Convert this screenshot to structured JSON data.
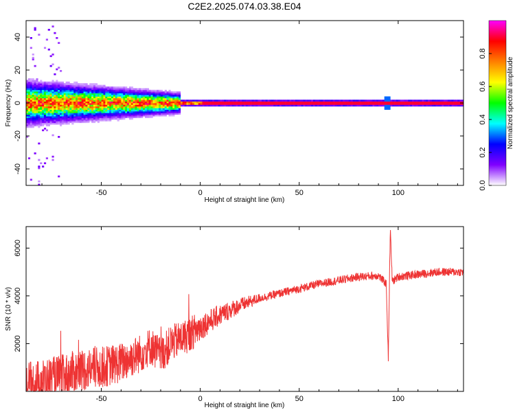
{
  "title": "C2E2.2025.074.03.38.E04",
  "chart_data": [
    {
      "type": "heatmap",
      "xlabel": "Height of straight line (km)",
      "ylabel": "Frequency (Hz)",
      "xlim": [
        -88,
        133
      ],
      "ylim": [
        -50,
        50
      ],
      "xticks": [
        -50,
        0,
        50,
        100
      ],
      "yticks": [
        -40,
        -20,
        0,
        20,
        40
      ],
      "ridge_frequency_hz": 0,
      "colorbar": {
        "label": "Normalized spectral amplitude",
        "range": [
          0,
          1
        ],
        "ticks": [
          0.0,
          0.2,
          0.4,
          0.6,
          0.8
        ],
        "tick_labels": [
          "0.0",
          "0.2",
          "0.4",
          "0.6",
          "0.8"
        ],
        "colors": [
          "#ffffff",
          "#8000ff",
          "#0000ff",
          "#00ffff",
          "#00ff00",
          "#ffff00",
          "#ff8000",
          "#ff0000",
          "#ff00ff"
        ]
      }
    },
    {
      "type": "line",
      "xlabel": "Height of straight line (km)",
      "ylabel": "SNR (10 * v/v)",
      "xlim": [
        -88,
        133
      ],
      "ylim": [
        0,
        6900
      ],
      "xticks": [
        -50,
        0,
        50,
        100
      ],
      "yticks": [
        2000,
        4000,
        6000
      ],
      "line_color": "#ee3333",
      "series": [
        {
          "x": [
            -88,
            -80,
            -70,
            -60,
            -50,
            -40,
            -30,
            -25,
            -20,
            -15,
            -10,
            -5,
            0,
            10,
            20,
            30,
            40,
            50,
            60,
            70,
            80,
            90,
            94,
            95,
            96,
            97,
            100,
            110,
            120,
            133
          ],
          "y": [
            200,
            400,
            600,
            900,
            1000,
            1200,
            1600,
            1900,
            1500,
            2000,
            2200,
            2400,
            2700,
            3200,
            3600,
            3900,
            4100,
            4300,
            4500,
            4650,
            4800,
            4850,
            4500,
            1400,
            6800,
            4600,
            4800,
            4900,
            5000,
            5000
          ]
        }
      ]
    }
  ]
}
